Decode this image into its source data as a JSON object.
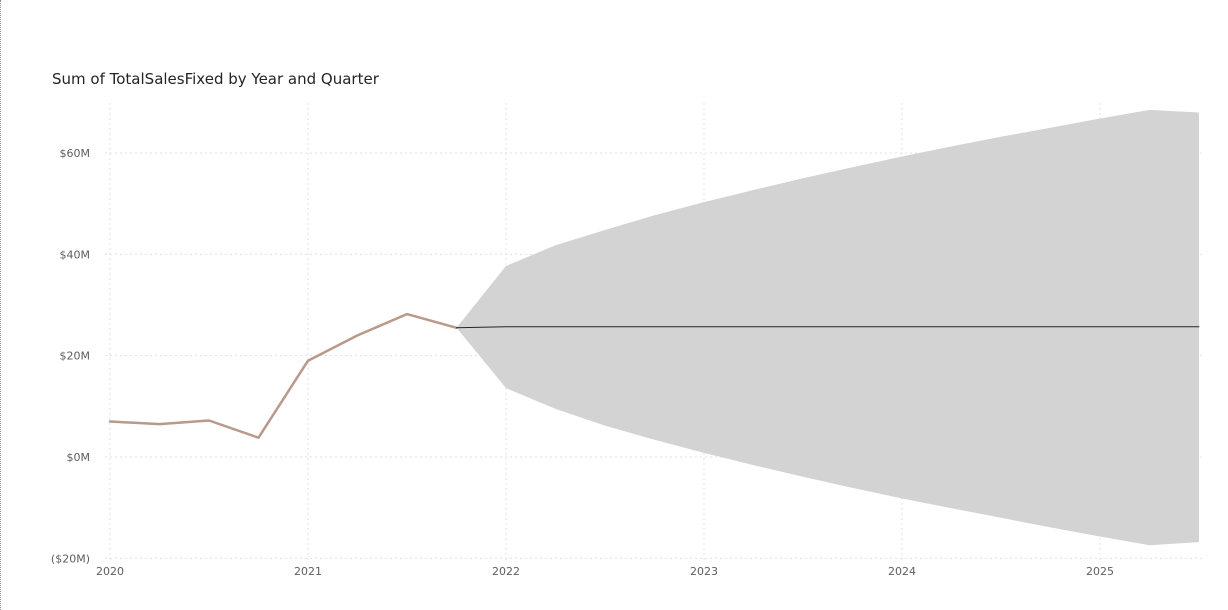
{
  "chart_data": {
    "type": "line",
    "title": "Sum of TotalSalesFixed by Year and Quarter",
    "x_ticks": [
      "2020",
      "2021",
      "2022",
      "2023",
      "2024",
      "2025"
    ],
    "y_ticks": [
      "($20M)",
      "$0M",
      "$20M",
      "$40M",
      "$60M"
    ],
    "y_tick_values": [
      -20,
      0,
      20,
      40,
      60
    ],
    "x_tick_values": [
      2020,
      2021,
      2022,
      2023,
      2024,
      2025
    ],
    "xlim": [
      2020,
      2025.5
    ],
    "ylim": [
      -20,
      70
    ],
    "grid": true,
    "y_unit": "$M",
    "series": [
      {
        "kind": "actual",
        "color": "#b8998a",
        "x": [
          2020.0,
          2020.25,
          2020.5,
          2020.75,
          2021.0,
          2021.25,
          2021.5,
          2021.75
        ],
        "y": [
          7.0,
          6.5,
          7.2,
          3.8,
          19.0,
          24.0,
          28.2,
          25.5
        ]
      },
      {
        "kind": "forecast",
        "color": "#252423",
        "x": [
          2021.75,
          2022.0,
          2025.5
        ],
        "y": [
          25.5,
          25.7,
          25.7
        ]
      }
    ],
    "confidence_band": {
      "color": "#d3d3d3",
      "x": [
        2021.75,
        2022.0,
        2022.25,
        2022.5,
        2022.75,
        2023.0,
        2023.25,
        2023.5,
        2023.75,
        2024.0,
        2024.25,
        2024.5,
        2024.75,
        2025.0,
        2025.25,
        2025.5
      ],
      "upper": [
        25.5,
        37.7,
        41.8,
        44.8,
        47.7,
        50.3,
        52.7,
        55.0,
        57.2,
        59.3,
        61.3,
        63.2,
        65.0,
        66.8,
        68.5,
        68.0
      ],
      "lower": [
        25.5,
        13.6,
        9.5,
        6.2,
        3.4,
        0.8,
        -1.6,
        -3.9,
        -6.1,
        -8.2,
        -10.1,
        -12.0,
        -13.9,
        -15.7,
        -17.4,
        -16.8
      ]
    }
  }
}
